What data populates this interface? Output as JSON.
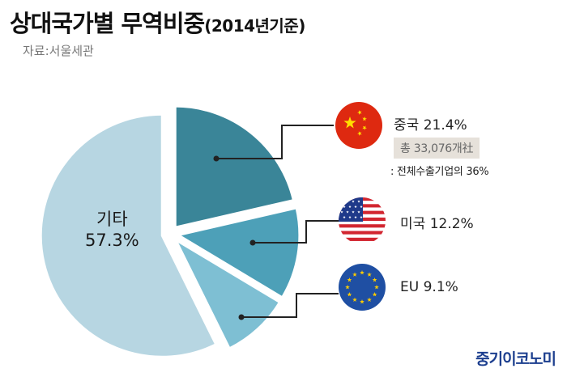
{
  "header": {
    "title": "상대국가별 무역비중",
    "title_suffix": "(2014년기준)",
    "source": "자료:서울세관"
  },
  "chart_data": {
    "type": "pie",
    "title": "상대국가별 무역비중",
    "subtitle": "(2014년기준)",
    "slices": [
      {
        "label": "중국",
        "value": 21.4,
        "value_label": "21.4%",
        "color": "#3a8598",
        "icon": "china-flag-icon"
      },
      {
        "label": "미국",
        "value": 12.2,
        "value_label": "12.2%",
        "color": "#4da0b8",
        "icon": "usa-flag-icon"
      },
      {
        "label": "EU",
        "value": 9.1,
        "value_label": "9.1%",
        "color": "#7ebfd3",
        "icon": "eu-flag-icon"
      },
      {
        "label": "기타",
        "value": 57.3,
        "value_label": "57.3%",
        "color": "#b7d6e2"
      }
    ]
  },
  "annotations": {
    "china_total": "총 33,076개社",
    "china_note": ": 전체수출기업의 36%"
  },
  "brand": {
    "logo_text": "중기이코노미",
    "color": "#1d3f8f"
  },
  "colors": {
    "leader_line": "#222222",
    "china_red": "#de2910",
    "china_star": "#ffde00",
    "eu_blue": "#1f4fa3",
    "eu_star": "#ffcc00",
    "usa_red": "#d22630",
    "usa_blue": "#1f3a8a"
  }
}
